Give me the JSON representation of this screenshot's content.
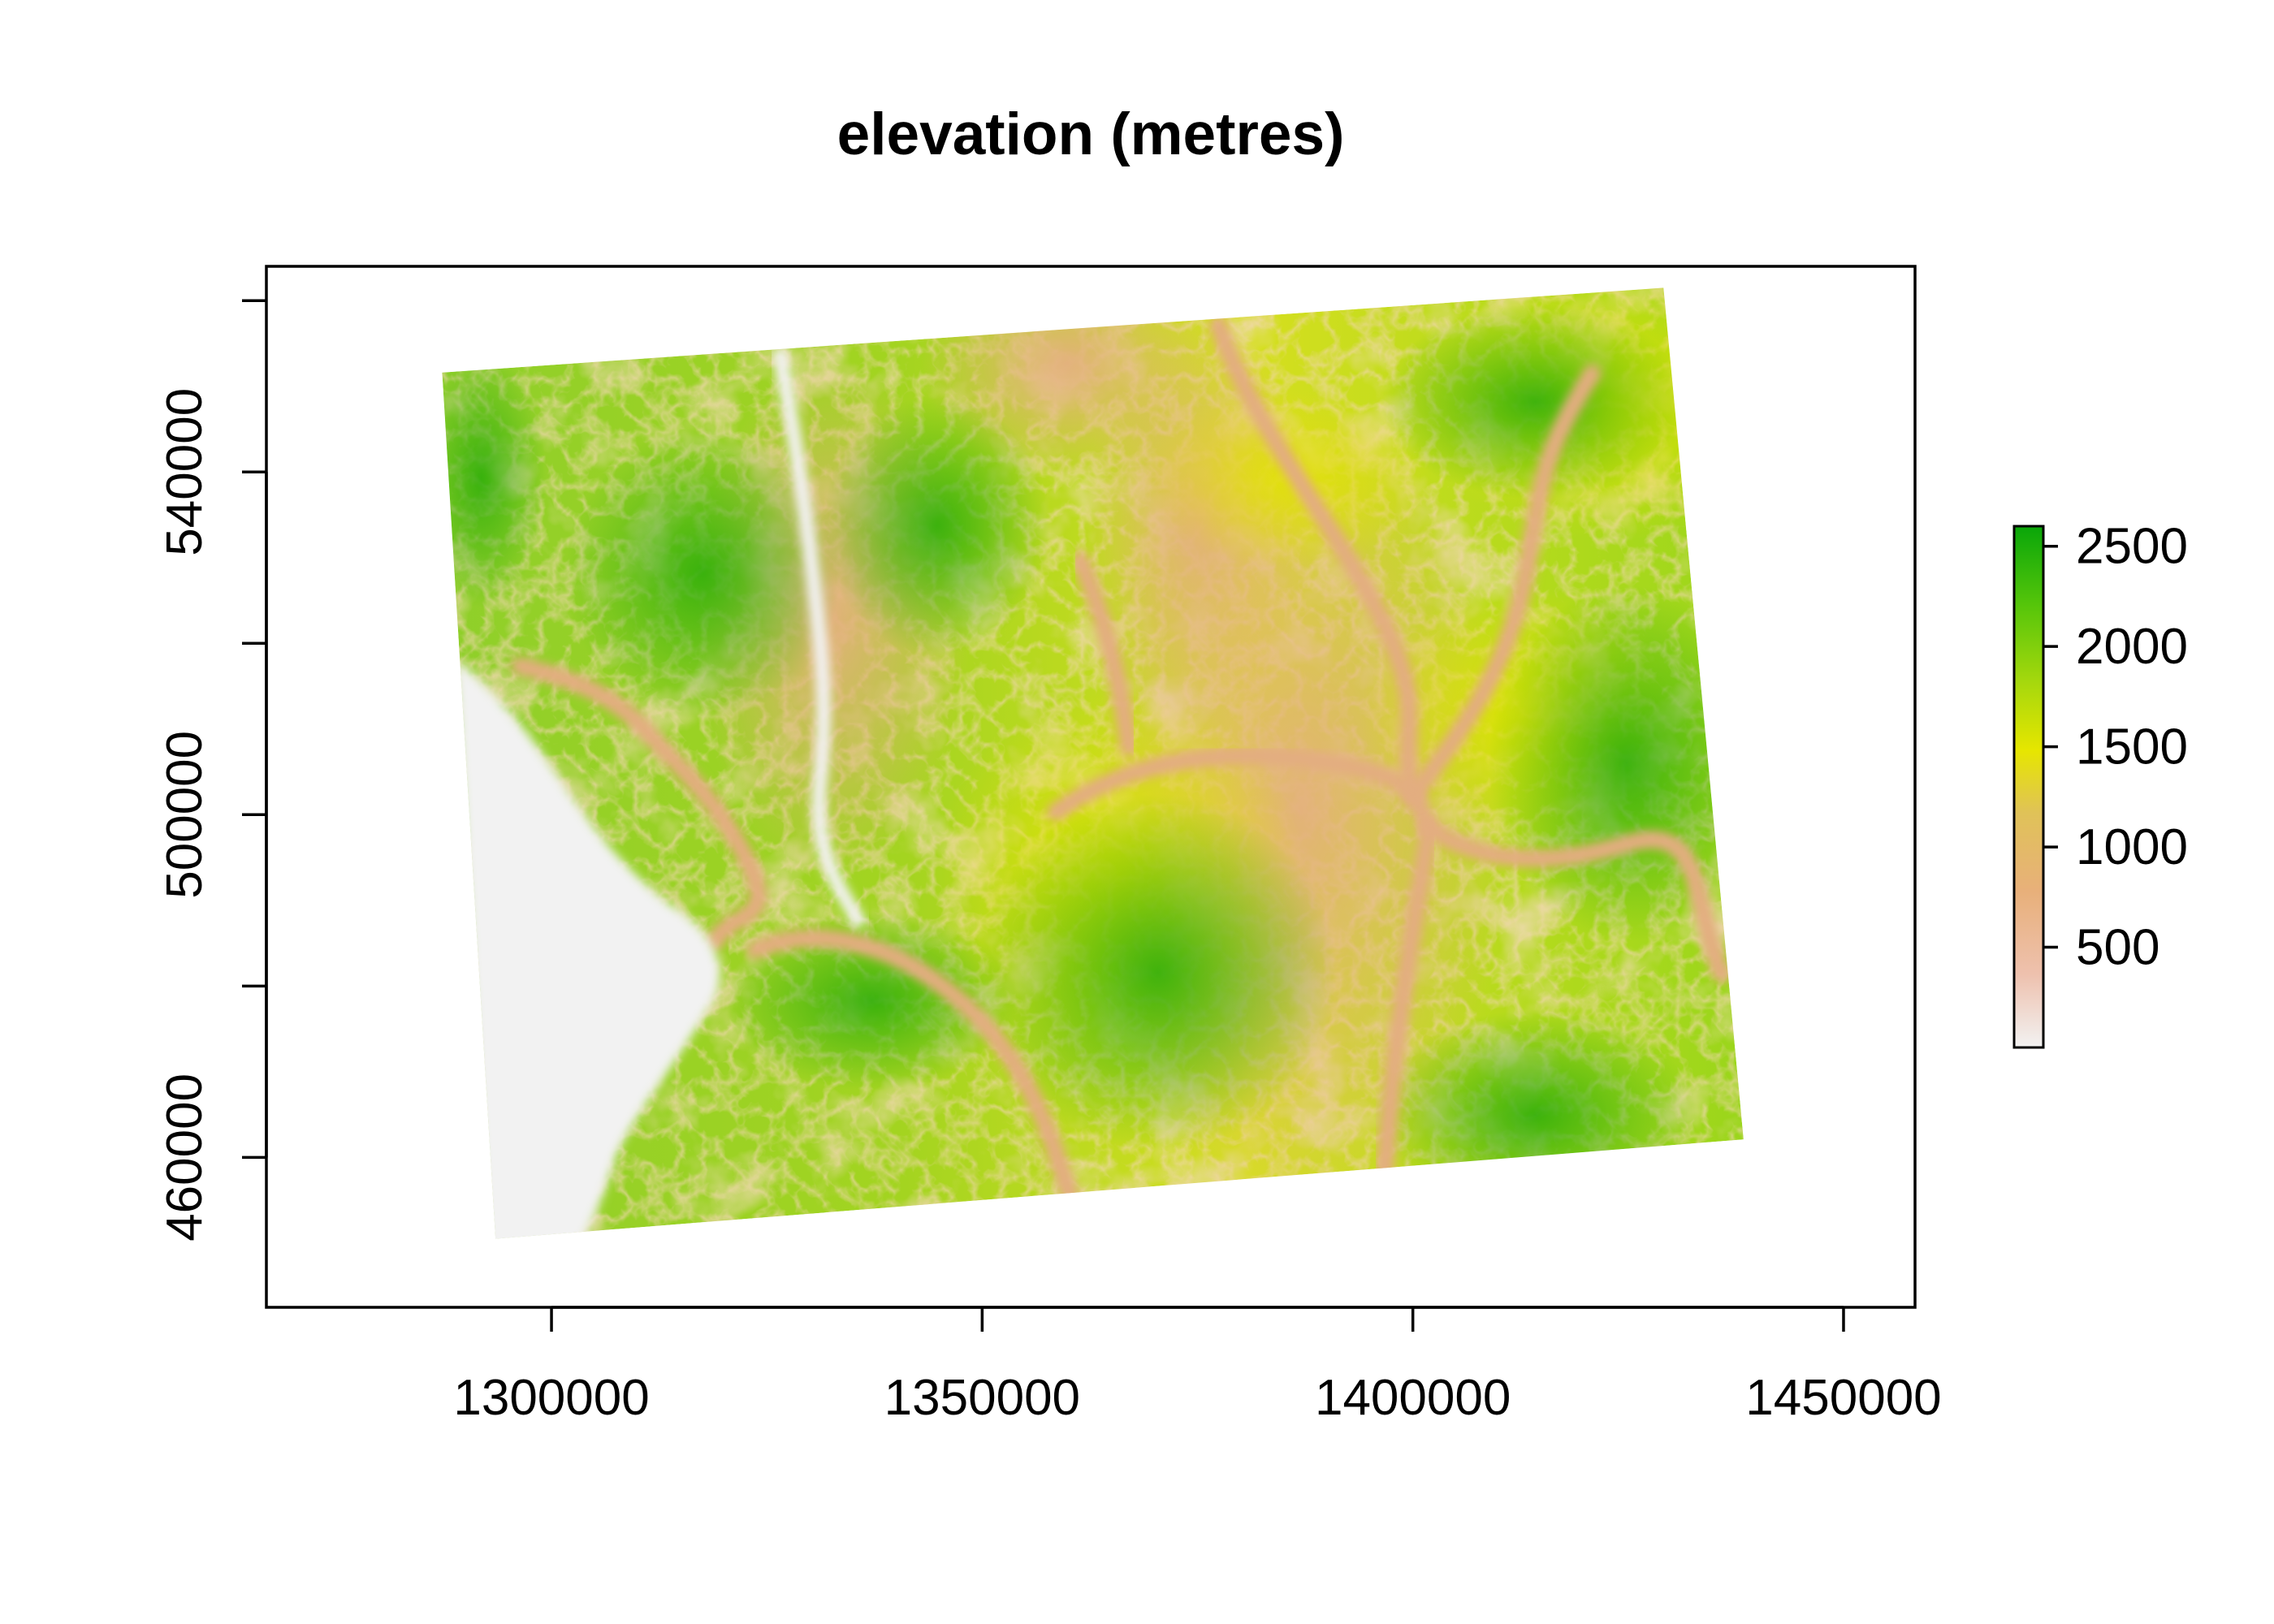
{
  "chart_data": {
    "type": "heatmap",
    "title": "elevation (metres)",
    "xlabel": "",
    "ylabel": "",
    "x_ticks": [
      "1300000",
      "1350000",
      "1400000",
      "1450000"
    ],
    "x_tick_values": [
      1300000,
      1350000,
      1400000,
      1450000
    ],
    "y_ticks": [
      "460000",
      "500000",
      "540000"
    ],
    "y_tick_values": [
      460000,
      500000,
      540000
    ],
    "xlim": [
      1266900,
      1458300
    ],
    "ylim": [
      442500,
      564000
    ],
    "raster_corners": {
      "top_left": [
        1287300,
        551600
      ],
      "top_right": [
        1429100,
        561500
      ],
      "bottom_right": [
        1438400,
        462100
      ],
      "bottom_left": [
        1293500,
        450500
      ]
    },
    "legend": {
      "position": "right",
      "values": [
        "2500",
        "2000",
        "1500",
        "1000",
        "500"
      ],
      "tick_values": [
        2500,
        2000,
        1500,
        1000,
        500
      ],
      "range": [
        0,
        2600
      ],
      "colors": [
        "#f2f2f2",
        "#eec1ae",
        "#e8b07a",
        "#e0c258",
        "#e6e600",
        "#a6d80d",
        "#55c50a",
        "#09a609"
      ]
    },
    "grid": false
  }
}
